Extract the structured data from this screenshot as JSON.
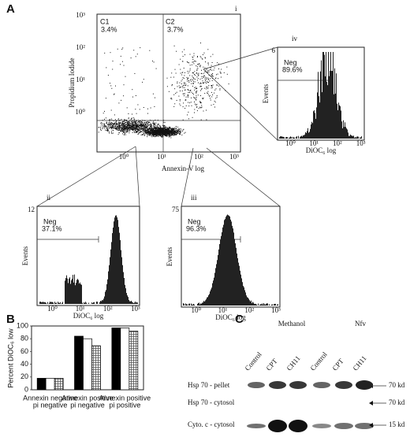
{
  "panel_a": {
    "label": "A",
    "scatter": {
      "label": "i",
      "q1": "C1",
      "q1_pct": "3.4%",
      "q2": "C2",
      "q2_pct": "3.7%",
      "ylabel": "Propidium Iodide",
      "xlabel": "Annexin-V log",
      "ticks": [
        "10⁰",
        "10¹",
        "10²",
        "10³"
      ]
    },
    "histograms": [
      {
        "label": "ii",
        "ymax": "12",
        "ylabel": "Events",
        "xlabel": "DiOC₆ log",
        "gate": "Neg",
        "pct": "37.1%"
      },
      {
        "label": "iii",
        "ymax": "75",
        "ylabel": "Events",
        "xlabel": "DiOC₆ log",
        "gate": "Neg",
        "pct": "96.3%"
      },
      {
        "label": "iv",
        "ymax": "6",
        "ylabel": "Events",
        "xlabel": "DiOC₆ log",
        "gate": "Neg",
        "pct": "89.6%"
      }
    ]
  },
  "chart_data": {
    "type": "bar",
    "label": "B",
    "ylabel": "Percent DiOC₆ low",
    "categories": [
      [
        "Annexin negative",
        "pi negative"
      ],
      [
        "Annexin positive",
        "pi negative"
      ],
      [
        "Annexin positive",
        "pi positive"
      ]
    ],
    "series": [
      {
        "color": "#000000",
        "values": [
          18,
          84,
          97
        ]
      },
      {
        "color": "#ffffff",
        "values": [
          18,
          80,
          97
        ]
      },
      {
        "color": "#aaaaaa",
        "pattern": "crosshatch",
        "values": [
          18,
          69,
          92
        ]
      }
    ],
    "ylim": [
      0,
      100
    ],
    "yticks": [
      0,
      20,
      40,
      60,
      80,
      100
    ]
  },
  "panel_c": {
    "label": "C",
    "groups": [
      "Methanol",
      "Nfv"
    ],
    "lanes": [
      "Control",
      "CPT",
      "CH11",
      "Control",
      "CPT",
      "CH11"
    ],
    "rows": [
      {
        "name": "Hsp 70 - pellet",
        "marker": "70 kd"
      },
      {
        "name": "Hsp 70 - cytosol",
        "marker": "70 kd"
      },
      {
        "name": "Cyto. c - cytosol",
        "marker": "15 kd"
      }
    ]
  }
}
